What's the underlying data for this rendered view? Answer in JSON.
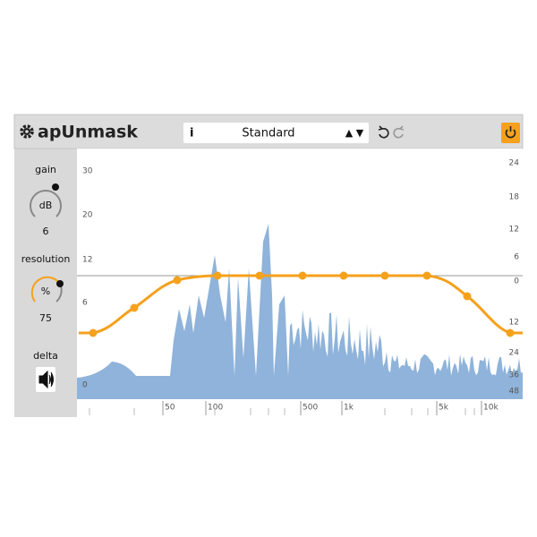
{
  "header": {
    "title": "apUnmask",
    "info": "i",
    "preset": "Standard",
    "arrows": "▲ ▼"
  },
  "controls": {
    "gain": {
      "label": "gain",
      "unit": "dB",
      "value": "6"
    },
    "resolution": {
      "label": "resolution",
      "unit": "%",
      "value": "75"
    },
    "delta": {
      "label": "delta"
    }
  },
  "scales": {
    "left": [
      "30",
      "20",
      "12",
      "6",
      "0"
    ],
    "right": [
      "24",
      "18",
      "12",
      "6",
      "0",
      "12",
      "24",
      "36",
      "48"
    ],
    "frequency": [
      "50",
      "100",
      "500",
      "1k",
      "5k",
      "10k"
    ]
  }
}
